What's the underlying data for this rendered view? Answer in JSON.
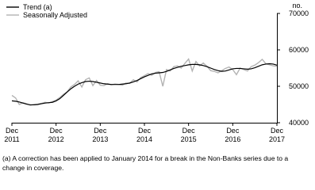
{
  "chart_data": {
    "type": "line",
    "ylabel": "no.",
    "categories": [
      "Dec 2011",
      null,
      null,
      null,
      null,
      null,
      null,
      null,
      null,
      null,
      null,
      null,
      "Dec 2012",
      null,
      null,
      null,
      null,
      null,
      null,
      null,
      null,
      null,
      null,
      null,
      "Dec 2013",
      null,
      null,
      null,
      null,
      null,
      null,
      null,
      null,
      null,
      null,
      null,
      "Dec 2014",
      null,
      null,
      null,
      null,
      null,
      null,
      null,
      null,
      null,
      null,
      null,
      "Dec 2015",
      null,
      null,
      null,
      null,
      null,
      null,
      null,
      null,
      null,
      null,
      null,
      "Dec 2016",
      null,
      null,
      null,
      null,
      null,
      null,
      null,
      null,
      null,
      null,
      null,
      "Dec 2017"
    ],
    "series": [
      {
        "name": "Trend (a)",
        "color": "#000000",
        "values": [
          46000,
          45900,
          45700,
          45400,
          45100,
          44900,
          44900,
          45000,
          45200,
          45400,
          45500,
          45600,
          46000,
          46600,
          47500,
          48400,
          49300,
          50000,
          50600,
          51000,
          51300,
          51400,
          51300,
          51100,
          50900,
          50700,
          50600,
          50500,
          50500,
          50500,
          50600,
          50700,
          50900,
          51200,
          51600,
          52100,
          52600,
          53000,
          53400,
          53600,
          53700,
          53800,
          54100,
          54500,
          54900,
          55200,
          55500,
          55700,
          55900,
          56000,
          56000,
          55900,
          55700,
          55400,
          55000,
          54600,
          54300,
          54100,
          54200,
          54500,
          54800,
          54900,
          54900,
          54800,
          54700,
          54800,
          55100,
          55500,
          55900,
          56100,
          56200,
          56100,
          55800
        ]
      },
      {
        "name": "Seasonally Adjusted",
        "color": "#b3b3b3",
        "values": [
          47500,
          46800,
          45000,
          45500,
          45200,
          44800,
          45000,
          45100,
          45300,
          45600,
          45400,
          45800,
          46200,
          46900,
          47800,
          48500,
          49800,
          50500,
          51500,
          49800,
          51800,
          52300,
          50200,
          51600,
          50300,
          50200,
          50700,
          50400,
          50600,
          50500,
          50300,
          50900,
          50800,
          51800,
          51200,
          52400,
          52900,
          53500,
          53000,
          53800,
          54000,
          50000,
          54600,
          54200,
          55400,
          55600,
          55000,
          56300,
          57500,
          54200,
          56800,
          55600,
          56400,
          55500,
          54300,
          54100,
          53700,
          54300,
          54900,
          55300,
          54600,
          53200,
          55000,
          54600,
          54200,
          55400,
          55800,
          56500,
          57400,
          56200,
          55900,
          55600,
          55500
        ]
      }
    ],
    "ylim": [
      40000,
      70000
    ],
    "yticks": [
      40000,
      50000,
      60000,
      70000
    ],
    "legend": "upper left",
    "footnote": "(a) A correction has been applied to January 2014 for a break in the Non-Banks series due to a change in coverage."
  }
}
